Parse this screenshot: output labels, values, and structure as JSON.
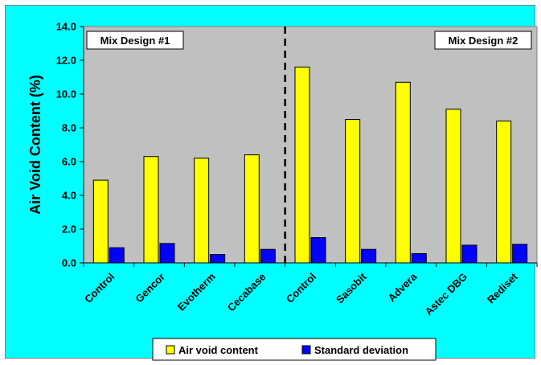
{
  "chart_data": {
    "type": "bar",
    "categories": [
      "Control",
      "Gencor",
      "Evotherm",
      "Cecabase",
      "Control",
      "Sasobit",
      "Advera",
      "Astec DBG",
      "Rediset"
    ],
    "series": [
      {
        "name": "Air void content",
        "values": [
          4.9,
          6.3,
          6.2,
          6.4,
          11.6,
          8.5,
          10.7,
          9.1,
          8.4
        ],
        "color": "#ffff00"
      },
      {
        "name": "Standard deviation",
        "values": [
          0.9,
          1.15,
          0.5,
          0.8,
          1.5,
          0.8,
          0.55,
          1.05,
          1.1
        ],
        "color": "#0000ff"
      }
    ],
    "ylabel": "Air Void Content (%)",
    "xlabel": "",
    "ylim": [
      0,
      14
    ],
    "yticks": [
      "0.0",
      "2.0",
      "4.0",
      "6.0",
      "8.0",
      "10.0",
      "12.0",
      "14.0"
    ],
    "grid": false,
    "plot_background": "#c0c0c0",
    "chart_background": "#00ffff",
    "legend_position": "bottom",
    "groups": [
      {
        "label": "Mix Design #1",
        "categories": [
          0,
          1,
          2,
          3
        ]
      },
      {
        "label": "Mix Design #2",
        "categories": [
          4,
          5,
          6,
          7,
          8
        ]
      }
    ],
    "divider_between": [
      3,
      4
    ]
  }
}
